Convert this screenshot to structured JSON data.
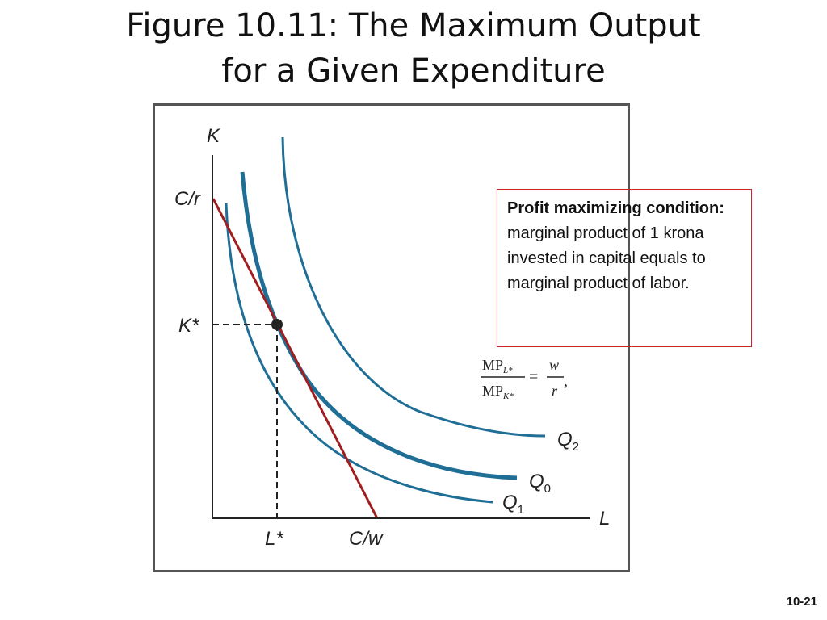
{
  "slide": {
    "title_line1": "Figure 10.11: The Maximum Output",
    "title_line2": "for a Given Expenditure",
    "page_number": "10-21"
  },
  "diagram": {
    "y_axis_label": "K",
    "x_axis_label": "L",
    "y_intercept_label": "C/r",
    "x_intercept_label": "C/w",
    "k_star_label": "K*",
    "l_star_label": "L*",
    "curves": [
      {
        "name": "Q",
        "subscript": "2"
      },
      {
        "name": "Q",
        "subscript": "0"
      },
      {
        "name": "Q",
        "subscript": "1"
      }
    ],
    "colors": {
      "isoquant": "#1f6e96",
      "isocost": "#a01e1e",
      "axis": "#222222"
    }
  },
  "callout": {
    "heading": "Profit maximizing condition:",
    "body": "marginal product of 1 krona invested in capital equals to marginal product of labor."
  },
  "formula": {
    "num_left": "MP",
    "num_left_sub": "L*",
    "den_left": "MP",
    "den_left_sub": "K*",
    "equals": "=",
    "num_right": "w",
    "den_right": "r",
    "trailing": ","
  }
}
